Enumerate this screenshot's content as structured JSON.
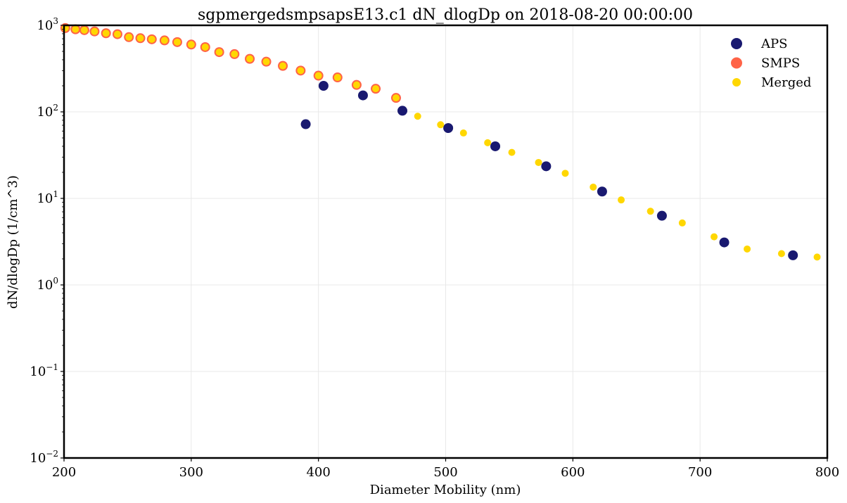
{
  "chart_data": {
    "type": "scatter",
    "title": "sgpmergedsmpsapsE13.c1 dN_dlogDp on 2018-08-20 00:00:00",
    "xlabel": "Diameter Mobility (nm)",
    "ylabel": "dN/dlogDp (1/cm^3)",
    "xlim": [
      200,
      800
    ],
    "ylim": [
      0.01,
      1000
    ],
    "yscale": "log",
    "grid": true,
    "legend_position": "top-right",
    "x_ticks": [
      {
        "value": 200,
        "label": "200"
      },
      {
        "value": 300,
        "label": "300"
      },
      {
        "value": 400,
        "label": "400"
      },
      {
        "value": 500,
        "label": "500"
      },
      {
        "value": 600,
        "label": "600"
      },
      {
        "value": 700,
        "label": "700"
      },
      {
        "value": 800,
        "label": "800"
      }
    ],
    "y_ticks": [
      {
        "value": 0.01,
        "base": "10",
        "exp": "−2"
      },
      {
        "value": 0.1,
        "base": "10",
        "exp": "−1"
      },
      {
        "value": 1,
        "base": "10",
        "exp": "0"
      },
      {
        "value": 10,
        "base": "10",
        "exp": "1"
      },
      {
        "value": 100,
        "base": "10",
        "exp": "2"
      },
      {
        "value": 1000,
        "base": "10",
        "exp": "3"
      }
    ],
    "series": [
      {
        "name": "APS",
        "color": "#191970",
        "marker": "filled-circle-large",
        "points": [
          {
            "x": 390,
            "y": 72
          },
          {
            "x": 404,
            "y": 200
          },
          {
            "x": 435,
            "y": 155
          },
          {
            "x": 466,
            "y": 103
          },
          {
            "x": 502,
            "y": 65
          },
          {
            "x": 539,
            "y": 40
          },
          {
            "x": 579,
            "y": 23.5
          },
          {
            "x": 623,
            "y": 12
          },
          {
            "x": 670,
            "y": 6.3
          },
          {
            "x": 719,
            "y": 3.1
          },
          {
            "x": 773,
            "y": 2.2
          }
        ]
      },
      {
        "name": "SMPS",
        "color": "#ff6347",
        "marker": "filled-circle-large",
        "points": [
          {
            "x": 201,
            "y": 930
          },
          {
            "x": 209,
            "y": 900
          },
          {
            "x": 216,
            "y": 880
          },
          {
            "x": 224,
            "y": 850
          },
          {
            "x": 233,
            "y": 810
          },
          {
            "x": 242,
            "y": 790
          },
          {
            "x": 251,
            "y": 730
          },
          {
            "x": 260,
            "y": 710
          },
          {
            "x": 269,
            "y": 690
          },
          {
            "x": 279,
            "y": 670
          },
          {
            "x": 289,
            "y": 640
          },
          {
            "x": 300,
            "y": 600
          },
          {
            "x": 311,
            "y": 560
          },
          {
            "x": 322,
            "y": 490
          },
          {
            "x": 334,
            "y": 465
          },
          {
            "x": 346,
            "y": 410
          },
          {
            "x": 359,
            "y": 380
          },
          {
            "x": 372,
            "y": 340
          },
          {
            "x": 386,
            "y": 300
          },
          {
            "x": 400,
            "y": 262
          },
          {
            "x": 415,
            "y": 250
          },
          {
            "x": 430,
            "y": 205
          },
          {
            "x": 445,
            "y": 185
          },
          {
            "x": 461,
            "y": 145
          }
        ]
      },
      {
        "name": "Merged",
        "color": "#ffd700",
        "marker": "filled-circle-small",
        "points": [
          {
            "x": 201,
            "y": 930
          },
          {
            "x": 209,
            "y": 900
          },
          {
            "x": 216,
            "y": 880
          },
          {
            "x": 224,
            "y": 850
          },
          {
            "x": 233,
            "y": 810
          },
          {
            "x": 242,
            "y": 790
          },
          {
            "x": 251,
            "y": 730
          },
          {
            "x": 260,
            "y": 710
          },
          {
            "x": 269,
            "y": 690
          },
          {
            "x": 279,
            "y": 670
          },
          {
            "x": 289,
            "y": 640
          },
          {
            "x": 300,
            "y": 600
          },
          {
            "x": 311,
            "y": 560
          },
          {
            "x": 322,
            "y": 490
          },
          {
            "x": 334,
            "y": 465
          },
          {
            "x": 346,
            "y": 410
          },
          {
            "x": 359,
            "y": 380
          },
          {
            "x": 372,
            "y": 340
          },
          {
            "x": 386,
            "y": 300
          },
          {
            "x": 400,
            "y": 262
          },
          {
            "x": 415,
            "y": 250
          },
          {
            "x": 430,
            "y": 205
          },
          {
            "x": 445,
            "y": 185
          },
          {
            "x": 461,
            "y": 145
          },
          {
            "x": 478,
            "y": 89
          },
          {
            "x": 496,
            "y": 71
          },
          {
            "x": 514,
            "y": 57
          },
          {
            "x": 533,
            "y": 44
          },
          {
            "x": 552,
            "y": 34
          },
          {
            "x": 573,
            "y": 26
          },
          {
            "x": 594,
            "y": 19.5
          },
          {
            "x": 616,
            "y": 13.5
          },
          {
            "x": 638,
            "y": 9.6
          },
          {
            "x": 661,
            "y": 7.1
          },
          {
            "x": 686,
            "y": 5.2
          },
          {
            "x": 711,
            "y": 3.6
          },
          {
            "x": 737,
            "y": 2.6
          },
          {
            "x": 764,
            "y": 2.3
          },
          {
            "x": 792,
            "y": 2.1
          }
        ]
      }
    ]
  }
}
